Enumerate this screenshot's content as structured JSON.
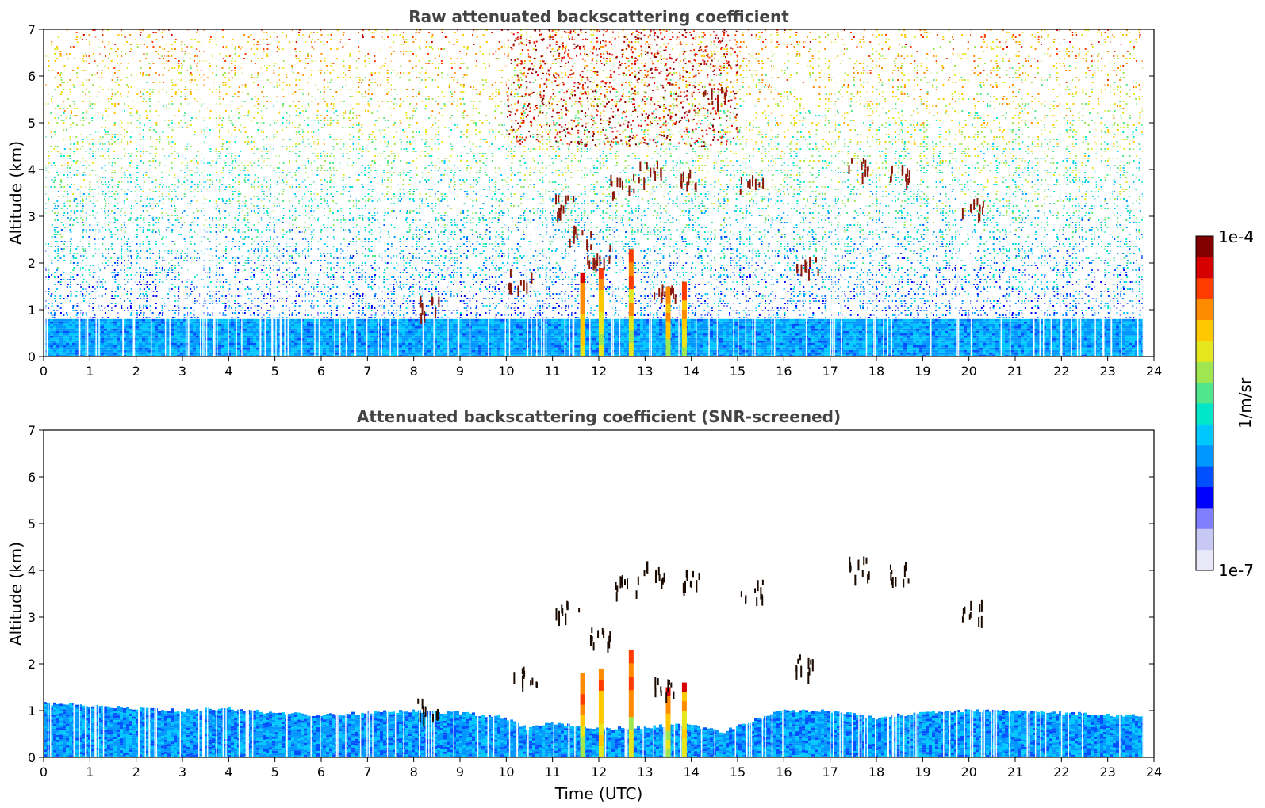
{
  "colors": {
    "colormap": [
      "#e8e8f8",
      "#c8c8f4",
      "#8080ff",
      "#0000ff",
      "#0050ff",
      "#0096ff",
      "#00c8ff",
      "#00e6c8",
      "#50e68c",
      "#a0e650",
      "#e6e61e",
      "#ffc800",
      "#ff8c00",
      "#ff3c00",
      "#d70000",
      "#820000"
    ],
    "cloud": "#8b1a0a"
  },
  "colorbar": {
    "max_label": "1e-4",
    "min_label": "1e-7",
    "unit_label": "1/m/sr"
  },
  "chart_data": [
    {
      "type": "heatmap",
      "title": "Raw attenuated backscattering coefficient",
      "xlabel": "",
      "ylabel": "Altitude (km)",
      "xlim": [
        0,
        24
      ],
      "ylim": [
        0,
        7
      ],
      "xticks": [
        "0",
        "1",
        "2",
        "3",
        "4",
        "5",
        "6",
        "7",
        "8",
        "9",
        "10",
        "11",
        "12",
        "13",
        "14",
        "15",
        "16",
        "17",
        "18",
        "19",
        "20",
        "21",
        "22",
        "23",
        "24"
      ],
      "yticks": [
        "0",
        "1",
        "2",
        "3",
        "4",
        "5",
        "6",
        "7"
      ],
      "colorscale": "log",
      "crange": [
        1e-07,
        0.0001
      ],
      "boundary_layer_top_km": 0.8,
      "noise_fills_to_km": 7,
      "cloud_features": [
        {
          "t": 11.2,
          "alt": 3.3
        },
        {
          "t": 11.6,
          "alt": 2.6
        },
        {
          "t": 12.0,
          "alt": 2.2
        },
        {
          "t": 12.5,
          "alt": 3.7
        },
        {
          "t": 13.1,
          "alt": 4.0
        },
        {
          "t": 13.4,
          "alt": 1.5
        },
        {
          "t": 14.0,
          "alt": 3.9
        },
        {
          "t": 14.5,
          "alt": 5.6
        },
        {
          "t": 15.3,
          "alt": 3.7
        },
        {
          "t": 16.5,
          "alt": 2.0
        },
        {
          "t": 17.6,
          "alt": 4.1
        },
        {
          "t": 18.5,
          "alt": 4.0
        },
        {
          "t": 20.1,
          "alt": 3.2
        },
        {
          "t": 10.3,
          "alt": 1.7
        },
        {
          "t": 8.3,
          "alt": 1.1
        }
      ],
      "precip_columns": [
        {
          "t": 11.65,
          "top": 1.8
        },
        {
          "t": 12.05,
          "top": 1.9
        },
        {
          "t": 12.7,
          "top": 2.3
        },
        {
          "t": 13.5,
          "top": 1.5
        },
        {
          "t": 13.85,
          "top": 1.6
        }
      ]
    },
    {
      "type": "heatmap",
      "title": "Attenuated backscattering coefficient (SNR-screened)",
      "xlabel": "Time (UTC)",
      "ylabel": "Altitude (km)",
      "xlim": [
        0,
        24
      ],
      "ylim": [
        0,
        7
      ],
      "xticks": [
        "0",
        "1",
        "2",
        "3",
        "4",
        "5",
        "6",
        "7",
        "8",
        "9",
        "10",
        "11",
        "12",
        "13",
        "14",
        "15",
        "16",
        "17",
        "18",
        "19",
        "20",
        "21",
        "22",
        "23",
        "24"
      ],
      "yticks": [
        "0",
        "1",
        "2",
        "3",
        "4",
        "5",
        "6",
        "7"
      ],
      "colorscale": "log",
      "crange": [
        1e-07,
        0.0001
      ],
      "boundary_layer_profile": [
        [
          0,
          1.15
        ],
        [
          1,
          1.12
        ],
        [
          2,
          1.05
        ],
        [
          3,
          1.0
        ],
        [
          4,
          1.05
        ],
        [
          5,
          0.95
        ],
        [
          6,
          0.9
        ],
        [
          7,
          0.95
        ],
        [
          8,
          1.0
        ],
        [
          9,
          0.95
        ],
        [
          10,
          0.85
        ],
        [
          10.5,
          0.6
        ],
        [
          11,
          0.75
        ],
        [
          12,
          0.6
        ],
        [
          13,
          0.65
        ],
        [
          14,
          0.7
        ],
        [
          14.7,
          0.55
        ],
        [
          15.5,
          0.85
        ],
        [
          16,
          1.0
        ],
        [
          17,
          1.0
        ],
        [
          18,
          0.85
        ],
        [
          19,
          0.95
        ],
        [
          20,
          1.0
        ],
        [
          21,
          1.0
        ],
        [
          22,
          0.95
        ],
        [
          23,
          0.9
        ],
        [
          23.85,
          0.9
        ]
      ],
      "cloud_features": [
        {
          "t": 11.3,
          "alt": 3.2
        },
        {
          "t": 12.0,
          "alt": 2.6
        },
        {
          "t": 12.6,
          "alt": 3.7
        },
        {
          "t": 13.2,
          "alt": 4.0
        },
        {
          "t": 13.4,
          "alt": 1.6
        },
        {
          "t": 14.0,
          "alt": 3.9
        },
        {
          "t": 15.3,
          "alt": 3.6
        },
        {
          "t": 16.5,
          "alt": 2.0
        },
        {
          "t": 17.6,
          "alt": 4.1
        },
        {
          "t": 18.5,
          "alt": 4.0
        },
        {
          "t": 20.1,
          "alt": 3.2
        },
        {
          "t": 10.4,
          "alt": 1.8
        },
        {
          "t": 8.3,
          "alt": 1.1
        }
      ],
      "precip_columns": [
        {
          "t": 11.65,
          "top": 1.8
        },
        {
          "t": 12.05,
          "top": 1.9
        },
        {
          "t": 12.7,
          "top": 2.3
        },
        {
          "t": 13.5,
          "top": 1.5
        },
        {
          "t": 13.85,
          "top": 1.6
        }
      ]
    }
  ]
}
